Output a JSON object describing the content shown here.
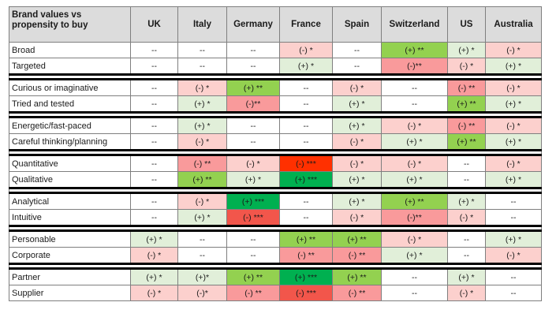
{
  "chart_data": {
    "type": "table",
    "header": {
      "corner": "Brand values vs propensity to buy",
      "columns": [
        "UK",
        "Italy",
        "Germany",
        "France",
        "Spain",
        "Switzerland",
        "US",
        "Australia"
      ]
    },
    "legend_colors": {
      "pos_weak": "#e1efd9",
      "pos_mid": "#93d150",
      "pos_strong": "#00b050",
      "neg_weak": "#fcd0cd",
      "neg_mid": "#f99a9b",
      "neg_strong": "#f2564b",
      "neg_max": "#ff3000",
      "none": "#ffffff"
    },
    "groups": [
      {
        "rows": [
          {
            "label": "Broad",
            "cells": [
              {
                "t": "--",
                "c": "none"
              },
              {
                "t": "--",
                "c": "none"
              },
              {
                "t": "--",
                "c": "none"
              },
              {
                "t": "(-) *",
                "c": "neg_weak"
              },
              {
                "t": "--",
                "c": "none"
              },
              {
                "t": "(+) **",
                "c": "pos_mid"
              },
              {
                "t": "(+) *",
                "c": "pos_weak"
              },
              {
                "t": "(-) *",
                "c": "neg_weak"
              }
            ]
          },
          {
            "label": "Targeted",
            "cells": [
              {
                "t": "--",
                "c": "none"
              },
              {
                "t": "--",
                "c": "none"
              },
              {
                "t": "--",
                "c": "none"
              },
              {
                "t": "(+) *",
                "c": "pos_weak"
              },
              {
                "t": "--",
                "c": "none"
              },
              {
                "t": "(-)**",
                "c": "neg_mid"
              },
              {
                "t": "(-) *",
                "c": "neg_weak"
              },
              {
                "t": "(+) *",
                "c": "pos_weak"
              }
            ]
          }
        ]
      },
      {
        "rows": [
          {
            "label": "Curious or imaginative",
            "cells": [
              {
                "t": "--",
                "c": "none"
              },
              {
                "t": "(-) *",
                "c": "neg_weak"
              },
              {
                "t": "(+) **",
                "c": "pos_mid"
              },
              {
                "t": "--",
                "c": "none"
              },
              {
                "t": "(-) *",
                "c": "neg_weak"
              },
              {
                "t": "--",
                "c": "none"
              },
              {
                "t": "(-) **",
                "c": "neg_mid"
              },
              {
                "t": "(-) *",
                "c": "neg_weak"
              }
            ]
          },
          {
            "label": "Tried and tested",
            "cells": [
              {
                "t": "--",
                "c": "none"
              },
              {
                "t": "(+) *",
                "c": "pos_weak"
              },
              {
                "t": "(-)**",
                "c": "neg_mid"
              },
              {
                "t": "--",
                "c": "none"
              },
              {
                "t": "(+) *",
                "c": "pos_weak"
              },
              {
                "t": "--",
                "c": "none"
              },
              {
                "t": "(+) **",
                "c": "pos_mid"
              },
              {
                "t": "(+) *",
                "c": "pos_weak"
              }
            ]
          }
        ]
      },
      {
        "rows": [
          {
            "label": "Energetic/fast-paced",
            "cells": [
              {
                "t": "--",
                "c": "none"
              },
              {
                "t": "(+) *",
                "c": "pos_weak"
              },
              {
                "t": "--",
                "c": "none"
              },
              {
                "t": "--",
                "c": "none"
              },
              {
                "t": "(+) *",
                "c": "pos_weak"
              },
              {
                "t": "(-) *",
                "c": "neg_weak"
              },
              {
                "t": "(-) **",
                "c": "neg_mid"
              },
              {
                "t": "(-) *",
                "c": "neg_weak"
              }
            ]
          },
          {
            "label": "Careful thinking/planning",
            "cells": [
              {
                "t": "--",
                "c": "none"
              },
              {
                "t": "(-) *",
                "c": "neg_weak"
              },
              {
                "t": "--",
                "c": "none"
              },
              {
                "t": "--",
                "c": "none"
              },
              {
                "t": "(-) *",
                "c": "neg_weak"
              },
              {
                "t": "(+) *",
                "c": "pos_weak"
              },
              {
                "t": "(+) **",
                "c": "pos_mid"
              },
              {
                "t": "(+) *",
                "c": "pos_weak"
              }
            ]
          }
        ]
      },
      {
        "rows": [
          {
            "label": "Quantitative",
            "cells": [
              {
                "t": "--",
                "c": "none"
              },
              {
                "t": "(-) **",
                "c": "neg_mid"
              },
              {
                "t": "(-) *",
                "c": "neg_weak"
              },
              {
                "t": "(-) ***",
                "c": "neg_max"
              },
              {
                "t": "(-) *",
                "c": "neg_weak"
              },
              {
                "t": "(-) *",
                "c": "neg_weak"
              },
              {
                "t": "--",
                "c": "none"
              },
              {
                "t": "(-) *",
                "c": "neg_weak"
              }
            ]
          },
          {
            "label": "Qualitative",
            "cells": [
              {
                "t": "--",
                "c": "none"
              },
              {
                "t": "(+) **",
                "c": "pos_mid"
              },
              {
                "t": "(+) *",
                "c": "pos_weak"
              },
              {
                "t": "(+) ***",
                "c": "pos_strong"
              },
              {
                "t": "(+) *",
                "c": "pos_weak"
              },
              {
                "t": "(+) *",
                "c": "pos_weak"
              },
              {
                "t": "--",
                "c": "none"
              },
              {
                "t": "(+) *",
                "c": "pos_weak"
              }
            ]
          }
        ]
      },
      {
        "rows": [
          {
            "label": "Analytical",
            "cells": [
              {
                "t": "--",
                "c": "none"
              },
              {
                "t": "(-) *",
                "c": "neg_weak"
              },
              {
                "t": "(+) ***",
                "c": "pos_strong"
              },
              {
                "t": "--",
                "c": "none"
              },
              {
                "t": "(+) *",
                "c": "pos_weak"
              },
              {
                "t": "(+) **",
                "c": "pos_mid"
              },
              {
                "t": "(+) *",
                "c": "pos_weak"
              },
              {
                "t": "--",
                "c": "none"
              }
            ]
          },
          {
            "label": "Intuitive",
            "cells": [
              {
                "t": "--",
                "c": "none"
              },
              {
                "t": "(+) *",
                "c": "pos_weak"
              },
              {
                "t": "(-) ***",
                "c": "neg_strong"
              },
              {
                "t": "--",
                "c": "none"
              },
              {
                "t": "(-) *",
                "c": "neg_weak"
              },
              {
                "t": "(-)**",
                "c": "neg_mid"
              },
              {
                "t": "(-) *",
                "c": "neg_weak"
              },
              {
                "t": "--",
                "c": "none"
              }
            ]
          }
        ]
      },
      {
        "rows": [
          {
            "label": "Personable",
            "cells": [
              {
                "t": "(+) *",
                "c": "pos_weak"
              },
              {
                "t": "--",
                "c": "none"
              },
              {
                "t": "--",
                "c": "none"
              },
              {
                "t": "(+) **",
                "c": "pos_mid"
              },
              {
                "t": "(+) **",
                "c": "pos_mid"
              },
              {
                "t": "(-) *",
                "c": "neg_weak"
              },
              {
                "t": "--",
                "c": "none"
              },
              {
                "t": "(+) *",
                "c": "pos_weak"
              }
            ]
          },
          {
            "label": "Corporate",
            "cells": [
              {
                "t": "(-) *",
                "c": "neg_weak"
              },
              {
                "t": "--",
                "c": "none"
              },
              {
                "t": "--",
                "c": "none"
              },
              {
                "t": "(-) **",
                "c": "neg_mid"
              },
              {
                "t": "(-) **",
                "c": "neg_mid"
              },
              {
                "t": "(+) *",
                "c": "pos_weak"
              },
              {
                "t": "--",
                "c": "none"
              },
              {
                "t": "(-) *",
                "c": "neg_weak"
              }
            ]
          }
        ]
      },
      {
        "rows": [
          {
            "label": "Partner",
            "cells": [
              {
                "t": "(+) *",
                "c": "pos_weak"
              },
              {
                "t": "(+)*",
                "c": "pos_weak"
              },
              {
                "t": "(+) **",
                "c": "pos_mid"
              },
              {
                "t": "(+) ***",
                "c": "pos_strong"
              },
              {
                "t": "(+) **",
                "c": "pos_mid"
              },
              {
                "t": "--",
                "c": "none"
              },
              {
                "t": "(+) *",
                "c": "pos_weak"
              },
              {
                "t": "--",
                "c": "none"
              }
            ]
          },
          {
            "label": "Supplier",
            "cells": [
              {
                "t": "(-) *",
                "c": "neg_weak"
              },
              {
                "t": "(-)*",
                "c": "neg_weak"
              },
              {
                "t": "(-) **",
                "c": "neg_mid"
              },
              {
                "t": "(-) ***",
                "c": "neg_strong"
              },
              {
                "t": "(-) **",
                "c": "neg_mid"
              },
              {
                "t": "--",
                "c": "none"
              },
              {
                "t": "(-) *",
                "c": "neg_weak"
              },
              {
                "t": "--",
                "c": "none"
              }
            ]
          }
        ]
      }
    ]
  }
}
